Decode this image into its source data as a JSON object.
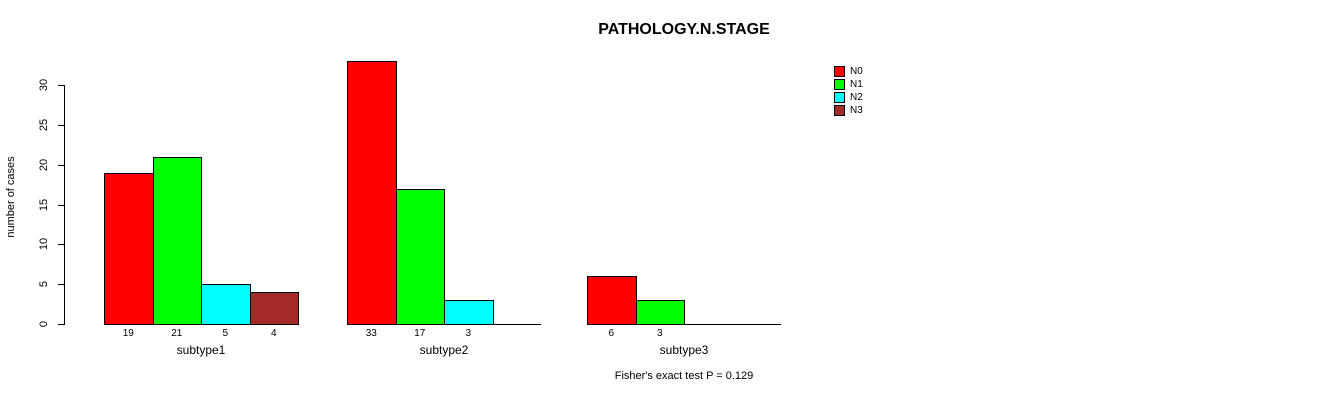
{
  "title": "PATHOLOGY.N.STAGE",
  "footer": "Fisher's exact test P = 0.129",
  "y_axis_title": "number of cases",
  "colors": {
    "N0": "#FF0000",
    "N1": "#00FF00",
    "N2": "#00FFFF",
    "N3": "#A52A2A",
    "axis": "#000000",
    "background": "#FFFFFF"
  },
  "legend": {
    "position": "top-right",
    "entries": [
      {
        "label": "N0",
        "color": "#FF0000"
      },
      {
        "label": "N1",
        "color": "#00FF00"
      },
      {
        "label": "N2",
        "color": "#00FFFF"
      },
      {
        "label": "N3",
        "color": "#A52A2A"
      }
    ]
  },
  "chart_data": {
    "type": "bar",
    "grouped": true,
    "title": "PATHOLOGY.N.STAGE",
    "xlabel": "",
    "ylabel": "number of cases",
    "categories": [
      "subtype1",
      "subtype2",
      "subtype3"
    ],
    "series": [
      {
        "name": "N0",
        "color": "#FF0000",
        "values": [
          19,
          33,
          6
        ]
      },
      {
        "name": "N1",
        "color": "#00FF00",
        "values": [
          21,
          17,
          3
        ]
      },
      {
        "name": "N2",
        "color": "#00FFFF",
        "values": [
          5,
          3,
          0
        ]
      },
      {
        "name": "N3",
        "color": "#A52A2A",
        "values": [
          4,
          0,
          0
        ]
      }
    ],
    "bar_value_labels": [
      [
        "19",
        "21",
        "5",
        "4"
      ],
      [
        "33",
        "17",
        "3",
        ""
      ],
      [
        "6",
        "3",
        "",
        ""
      ]
    ],
    "yticks": [
      0,
      5,
      10,
      15,
      20,
      25,
      30
    ],
    "ylim": [
      0,
      33
    ],
    "grid": false,
    "legend_position": "right",
    "annotation": "Fisher's exact test P = 0.129"
  }
}
